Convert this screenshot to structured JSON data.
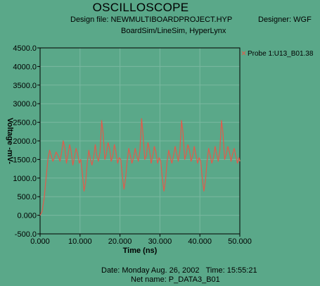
{
  "header": {
    "title": "OSCILLOSCOPE",
    "design_file": "Design file: NEWMULTIBOARDPROJECT.HYP",
    "designer": "Designer: WGF",
    "tool": "BoardSim/LineSim, HyperLynx"
  },
  "footer": {
    "date": "Date: Monday Aug. 26, 2002",
    "time": "Time: 15:55:21",
    "net": "Net name: P_DATA3_B01"
  },
  "colors": {
    "background": "#5aa889",
    "trace": "#e35a4a",
    "grid": "#7ab8a0",
    "axis": "#000000"
  },
  "chart_data": {
    "type": "line",
    "xlabel": "Time (ns)",
    "ylabel": "Voltage -mV-",
    "xlim": [
      0,
      50
    ],
    "ylim": [
      -500,
      4500
    ],
    "x_ticks": [
      "0.000",
      "10.000",
      "20.000",
      "30.000",
      "40.000",
      "50.000"
    ],
    "y_ticks": [
      "4500.0",
      "4000.0",
      "3500.0",
      "3000.0",
      "2500.0",
      "2000.0",
      "1500.0",
      "1000.0",
      "500.0",
      "0.000",
      "-500.0"
    ],
    "grid": true,
    "legend_position": "top-right",
    "series": [
      {
        "name": "Probe 1:U13_B01.38",
        "x": [
          0,
          0.5,
          1.0,
          1.5,
          2.0,
          2.4,
          2.8,
          3.2,
          3.6,
          4.0,
          4.5,
          5.0,
          5.4,
          5.8,
          6.2,
          6.6,
          7.0,
          7.4,
          7.8,
          8.2,
          8.6,
          9.0,
          9.4,
          9.8,
          10.2,
          10.6,
          11.0,
          11.4,
          11.8,
          12.2,
          12.6,
          13.0,
          13.4,
          13.8,
          14.2,
          14.6,
          15.0,
          15.4,
          15.8,
          16.2,
          16.6,
          17.0,
          17.4,
          17.8,
          18.2,
          18.6,
          19.0,
          19.4,
          19.8,
          20.2,
          20.6,
          21.0,
          21.4,
          21.8,
          22.2,
          22.6,
          23.0,
          23.4,
          23.8,
          24.2,
          24.6,
          25.0,
          25.4,
          25.8,
          26.2,
          26.6,
          27.0,
          27.4,
          27.8,
          28.2,
          28.6,
          29.0,
          29.4,
          29.8,
          30.2,
          30.6,
          31.0,
          31.4,
          31.8,
          32.2,
          32.6,
          33.0,
          33.4,
          33.8,
          34.2,
          34.6,
          35.0,
          35.4,
          35.8,
          36.2,
          36.6,
          37.0,
          37.4,
          37.8,
          38.2,
          38.6,
          39.0,
          39.4,
          39.8,
          40.2,
          40.6,
          41.0,
          41.4,
          41.8,
          42.2,
          42.6,
          43.0,
          43.4,
          43.8,
          44.2,
          44.6,
          45.0,
          45.4,
          45.8,
          46.2,
          46.6,
          47.0,
          47.4,
          47.8,
          48.2,
          48.6,
          49.0,
          49.4,
          49.8,
          50.0
        ],
        "values": [
          0,
          100,
          450,
          1000,
          1550,
          1750,
          1600,
          1450,
          1550,
          1700,
          1600,
          1450,
          1700,
          2000,
          1800,
          1400,
          1650,
          1900,
          1700,
          1350,
          1550,
          1800,
          1650,
          1400,
          1500,
          1100,
          650,
          900,
          1400,
          1750,
          1500,
          1350,
          1550,
          1900,
          1600,
          1450,
          1700,
          2550,
          2200,
          1500,
          1650,
          1950,
          1800,
          1450,
          1600,
          1900,
          1700,
          1400,
          1550,
          1500,
          1050,
          700,
          1000,
          1450,
          1800,
          1600,
          1400,
          1550,
          1800,
          1600,
          1450,
          1750,
          2600,
          2150,
          1500,
          1600,
          1950,
          1750,
          1400,
          1600,
          1850,
          1700,
          1400,
          1550,
          1450,
          1000,
          650,
          950,
          1450,
          1750,
          1550,
          1400,
          1600,
          1850,
          1650,
          1450,
          1750,
          2550,
          2200,
          1500,
          1650,
          1900,
          1750,
          1450,
          1600,
          1850,
          1650,
          1400,
          1550,
          1450,
          1000,
          650,
          950,
          1450,
          1800,
          1600,
          1400,
          1550,
          1850,
          1650,
          1450,
          1750,
          2550,
          2200,
          1500,
          1650,
          1850,
          1700,
          1450,
          1650,
          1800,
          1600,
          1400,
          1550,
          1450
        ]
      }
    ]
  }
}
